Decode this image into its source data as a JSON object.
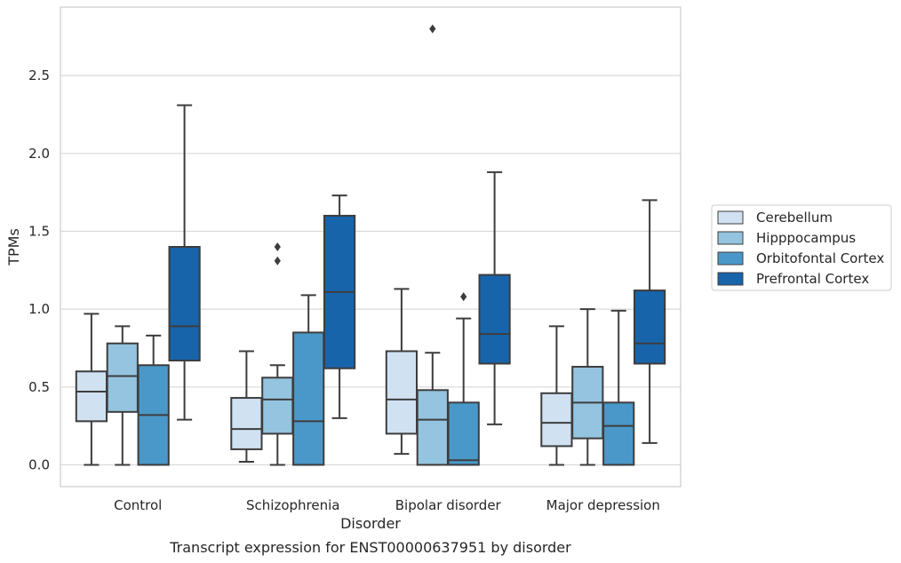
{
  "chart_data": {
    "type": "box",
    "title": "",
    "caption": "Transcript expression for ENST00000637951 by disorder",
    "xlabel": "Disorder",
    "ylabel": "TPMs",
    "ylim": [
      -0.14,
      2.94
    ],
    "yticks": [
      0.0,
      0.5,
      1.0,
      1.5,
      2.0,
      2.5
    ],
    "ytick_labels": [
      "0.0",
      "0.5",
      "1.0",
      "1.5",
      "2.0",
      "2.5"
    ],
    "grid": "horizontal",
    "legend_position": "right",
    "categories": [
      "Control",
      "Schizophrenia",
      "Bipolar disorder",
      "Major depression"
    ],
    "series": [
      {
        "name": "Cerebellum",
        "color": "#d0e1f2",
        "boxes": [
          {
            "whislo": 0.0,
            "q1": 0.28,
            "med": 0.47,
            "q3": 0.6,
            "whishi": 0.97,
            "fliers": []
          },
          {
            "whislo": 0.02,
            "q1": 0.1,
            "med": 0.23,
            "q3": 0.43,
            "whishi": 0.73,
            "fliers": []
          },
          {
            "whislo": 0.07,
            "q1": 0.2,
            "med": 0.42,
            "q3": 0.73,
            "whishi": 1.13,
            "fliers": []
          },
          {
            "whislo": 0.0,
            "q1": 0.12,
            "med": 0.27,
            "q3": 0.46,
            "whishi": 0.89,
            "fliers": []
          }
        ]
      },
      {
        "name": "Hipppocampus",
        "color": "#94c4df",
        "boxes": [
          {
            "whislo": 0.0,
            "q1": 0.34,
            "med": 0.57,
            "q3": 0.78,
            "whishi": 0.89,
            "fliers": []
          },
          {
            "whislo": 0.0,
            "q1": 0.2,
            "med": 0.42,
            "q3": 0.56,
            "whishi": 0.64,
            "fliers": [
              1.31,
              1.4
            ]
          },
          {
            "whislo": 0.0,
            "q1": 0.0,
            "med": 0.29,
            "q3": 0.48,
            "whishi": 0.72,
            "fliers": [
              2.8
            ]
          },
          {
            "whislo": 0.0,
            "q1": 0.17,
            "med": 0.4,
            "q3": 0.63,
            "whishi": 1.0,
            "fliers": []
          }
        ]
      },
      {
        "name": "Orbitofontal Cortex",
        "color": "#4a98c9",
        "boxes": [
          {
            "whislo": 0.0,
            "q1": 0.0,
            "med": 0.32,
            "q3": 0.64,
            "whishi": 0.83,
            "fliers": []
          },
          {
            "whislo": 0.0,
            "q1": 0.0,
            "med": 0.28,
            "q3": 0.85,
            "whishi": 1.09,
            "fliers": []
          },
          {
            "whislo": 0.0,
            "q1": 0.0,
            "med": 0.03,
            "q3": 0.4,
            "whishi": 0.94,
            "fliers": [
              1.08
            ]
          },
          {
            "whislo": 0.0,
            "q1": 0.0,
            "med": 0.25,
            "q3": 0.4,
            "whishi": 0.99,
            "fliers": []
          }
        ]
      },
      {
        "name": "Prefrontal Cortex",
        "color": "#1764ab",
        "boxes": [
          {
            "whislo": 0.29,
            "q1": 0.67,
            "med": 0.89,
            "q3": 1.4,
            "whishi": 2.31,
            "fliers": []
          },
          {
            "whislo": 0.3,
            "q1": 0.62,
            "med": 1.11,
            "q3": 1.6,
            "whishi": 1.73,
            "fliers": []
          },
          {
            "whislo": 0.26,
            "q1": 0.65,
            "med": 0.84,
            "q3": 1.22,
            "whishi": 1.88,
            "fliers": []
          },
          {
            "whislo": 0.14,
            "q1": 0.65,
            "med": 0.78,
            "q3": 1.12,
            "whishi": 1.7,
            "fliers": []
          }
        ]
      }
    ]
  }
}
